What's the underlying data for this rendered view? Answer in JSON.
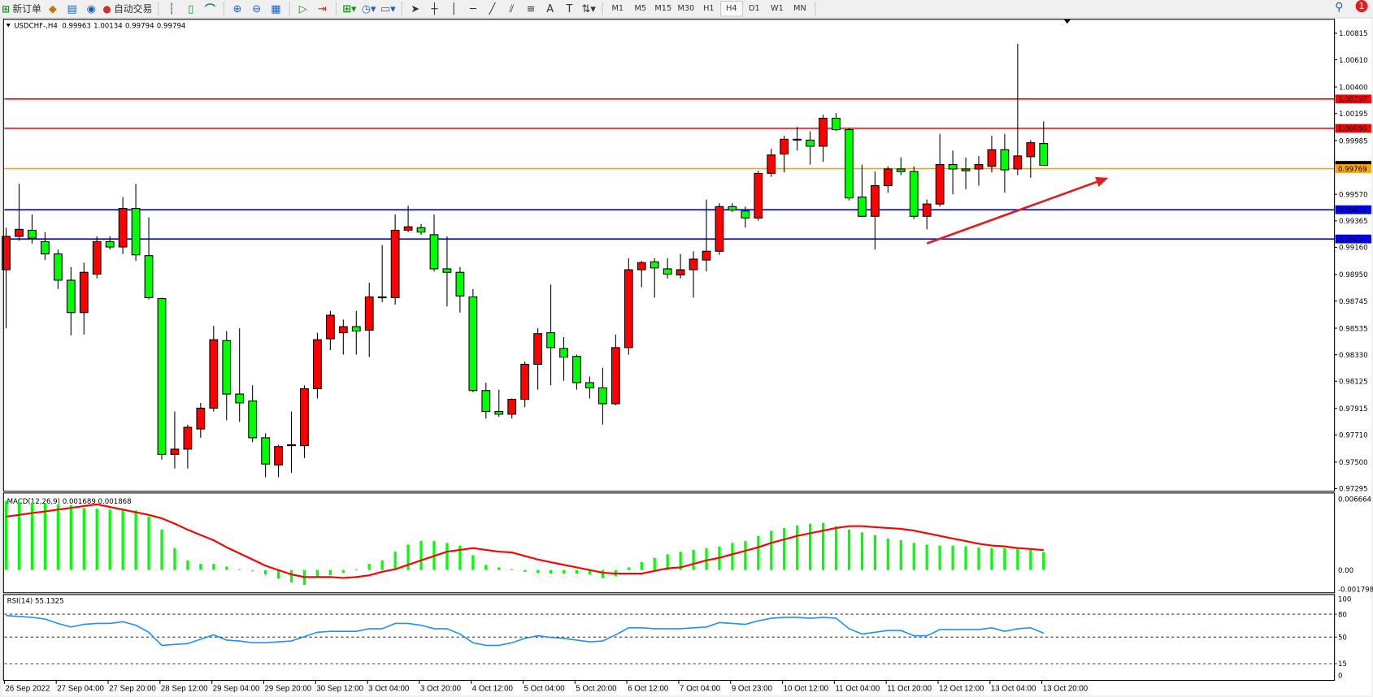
{
  "toolbar": {
    "new_order_label": "新订单",
    "auto_trading_label": "自动交易",
    "timeframes": [
      "M1",
      "M5",
      "M15",
      "M30",
      "H1",
      "H4",
      "D1",
      "W1",
      "MN"
    ],
    "active_timeframe": "H4",
    "notification_count": "1"
  },
  "chart": {
    "symbol": "USDCHF-,H4",
    "open": "0.99963",
    "high": "1.00134",
    "low": "0.99794",
    "close": "0.99794"
  },
  "colors": {
    "bull": "#ff0000",
    "bear": "#00ff00",
    "resistance": "#ff0000",
    "pivot": "#ffa500",
    "support": "#0000ff",
    "macd_hist": "#00ff00",
    "macd_signal": "#ff0000",
    "rsi": "#1e90ff",
    "arrow": "#e02020"
  },
  "chart_data": [
    {
      "type": "candlestick",
      "ylim": [
        0.97295,
        1.00815
      ],
      "price_ticks": [
        "1.00815",
        "1.00610",
        "1.00400",
        "1.00195",
        "0.99985",
        "0.99570",
        "0.99365",
        "0.99160",
        "0.98950",
        "0.98745",
        "0.98535",
        "0.98330",
        "0.98125",
        "0.97915",
        "0.97710",
        "0.97500",
        "0.97295"
      ],
      "x_labels": [
        "26 Sep 2022",
        "27 Sep 04:00",
        "27 Sep 20:00",
        "28 Sep 12:00",
        "29 Sep 04:00",
        "29 Sep 20:00",
        "30 Sep 12:00",
        "3 Oct 04:00",
        "3 Oct 20:00",
        "4 Oct 12:00",
        "5 Oct 04:00",
        "5 Oct 20:00",
        "6 Oct 12:00",
        "7 Oct 04:00",
        "9 Oct 23:00",
        "10 Oct 12:00",
        "11 Oct 04:00",
        "11 Oct 20:00",
        "12 Oct 12:00",
        "13 Oct 04:00",
        "13 Oct 20:00"
      ],
      "x_label_every": 4,
      "ohlc": [
        [
          0.98987,
          0.99312,
          0.98534,
          0.99245
        ],
        [
          0.99245,
          0.99651,
          0.99211,
          0.99299
        ],
        [
          0.99292,
          0.99414,
          0.9919,
          0.99231
        ],
        [
          0.99204,
          0.99278,
          0.99062,
          0.99109
        ],
        [
          0.99109,
          0.99143,
          0.98838,
          0.98906
        ],
        [
          0.98906,
          0.99008,
          0.9848,
          0.98656
        ],
        [
          0.98656,
          0.99042,
          0.98486,
          0.98967
        ],
        [
          0.98953,
          0.99245,
          0.9892,
          0.99204
        ],
        [
          0.99204,
          0.99245,
          0.99143,
          0.99163
        ],
        [
          0.99163,
          0.99549,
          0.99109,
          0.99461
        ],
        [
          0.99461,
          0.99651,
          0.99055,
          0.99102
        ],
        [
          0.99096,
          0.99393,
          0.98757,
          0.98771
        ],
        [
          0.98764,
          0.98771,
          0.97519,
          0.97559
        ],
        [
          0.97559,
          0.97891,
          0.97451,
          0.976
        ],
        [
          0.976,
          0.97789,
          0.97451,
          0.97769
        ],
        [
          0.97756,
          0.97958,
          0.97688,
          0.97917
        ],
        [
          0.97917,
          0.98554,
          0.97891,
          0.98446
        ],
        [
          0.98439,
          0.98513,
          0.97823,
          0.98026
        ],
        [
          0.98026,
          0.98534,
          0.9781,
          0.97958
        ],
        [
          0.97972,
          0.98094,
          0.97654,
          0.97688
        ],
        [
          0.97688,
          0.97722,
          0.97383,
          0.97485
        ],
        [
          0.97478,
          0.97634,
          0.97383,
          0.9762
        ],
        [
          0.97634,
          0.97891,
          0.97417,
          0.97627
        ],
        [
          0.97627,
          0.98094,
          0.97532,
          0.98067
        ],
        [
          0.98067,
          0.985,
          0.97992,
          0.98446
        ],
        [
          0.98453,
          0.98669,
          0.98365,
          0.98635
        ],
        [
          0.985,
          0.98602,
          0.98331,
          0.98547
        ],
        [
          0.98547,
          0.98669,
          0.98331,
          0.98513
        ],
        [
          0.9852,
          0.98886,
          0.98311,
          0.98777
        ],
        [
          0.98777,
          0.99177,
          0.98737,
          0.98771
        ],
        [
          0.98771,
          0.99414,
          0.98717,
          0.99292
        ],
        [
          0.99292,
          0.99482,
          0.99278,
          0.99319
        ],
        [
          0.99312,
          0.99339,
          0.99258,
          0.99278
        ],
        [
          0.99258,
          0.99414,
          0.98974,
          0.98994
        ],
        [
          0.98994,
          0.99245,
          0.98703,
          0.98967
        ],
        [
          0.98967,
          0.99008,
          0.98656,
          0.98784
        ],
        [
          0.98777,
          0.98838,
          0.9804,
          0.98053
        ],
        [
          0.98053,
          0.98114,
          0.97837,
          0.97891
        ],
        [
          0.97891,
          0.9806,
          0.9785,
          0.9787
        ],
        [
          0.9787,
          0.97992,
          0.97837,
          0.97985
        ],
        [
          0.97985,
          0.98277,
          0.97924,
          0.98256
        ],
        [
          0.98256,
          0.98534,
          0.9806,
          0.98493
        ],
        [
          0.985,
          0.98872,
          0.98094,
          0.98385
        ],
        [
          0.98378,
          0.98466,
          0.98128,
          0.98311
        ],
        [
          0.98317,
          0.98331,
          0.9806,
          0.98114
        ],
        [
          0.98114,
          0.98162,
          0.97992,
          0.98074
        ],
        [
          0.98074,
          0.98229,
          0.97789,
          0.97951
        ],
        [
          0.97951,
          0.98486,
          0.97938,
          0.98385
        ],
        [
          0.98385,
          0.99075,
          0.98331,
          0.98987
        ],
        [
          0.98987,
          0.99055,
          0.98852,
          0.99042
        ],
        [
          0.99048,
          0.99075,
          0.98771,
          0.99001
        ],
        [
          0.98994,
          0.99075,
          0.9892,
          0.98953
        ],
        [
          0.98947,
          0.99109,
          0.9892,
          0.98987
        ],
        [
          0.98987,
          0.9913,
          0.98771,
          0.99069
        ],
        [
          0.99062,
          0.99529,
          0.98974,
          0.9913
        ],
        [
          0.9913,
          0.99502,
          0.99102,
          0.99475
        ],
        [
          0.99475,
          0.99502,
          0.99434,
          0.99448
        ],
        [
          0.99441,
          0.99475,
          0.99312,
          0.99387
        ],
        [
          0.99387,
          0.99752,
          0.99366,
          0.99732
        ],
        [
          0.99732,
          0.99921,
          0.99705,
          0.99874
        ],
        [
          0.99881,
          1.00023,
          0.99739,
          0.99996
        ],
        [
          0.99996,
          1.00091,
          0.99908,
          0.99989
        ],
        [
          0.99989,
          1.00057,
          0.998,
          0.99942
        ],
        [
          0.99942,
          1.00185,
          0.9982,
          1.00158
        ],
        [
          1.00158,
          1.00199,
          1.00057,
          1.0007
        ],
        [
          1.0007,
          1.00084,
          0.99522,
          0.99542
        ],
        [
          0.99549,
          0.998,
          0.99393,
          0.994
        ],
        [
          0.994,
          0.99746,
          0.99143,
          0.99637
        ],
        [
          0.99637,
          0.99786,
          0.99583,
          0.99766
        ],
        [
          0.99766,
          0.99854,
          0.99718,
          0.99746
        ],
        [
          0.99746,
          0.99786,
          0.9938,
          0.994
        ],
        [
          0.994,
          0.99529,
          0.99299,
          0.99495
        ],
        [
          0.99495,
          1.00037,
          0.99475,
          0.998
        ],
        [
          0.998,
          0.99908,
          0.9957,
          0.99766
        ],
        [
          0.99766,
          0.99854,
          0.9961,
          0.99752
        ],
        [
          0.99766,
          0.99867,
          0.99637,
          0.998
        ],
        [
          0.99786,
          1.00023,
          0.99739,
          0.99915
        ],
        [
          0.99915,
          1.00037,
          0.99583,
          0.99759
        ],
        [
          0.99766,
          1.00734,
          0.99718,
          0.99867
        ],
        [
          0.99861,
          0.99989,
          0.99698,
          0.99969
        ],
        [
          0.99963,
          1.00134,
          0.99794,
          0.99794
        ]
      ],
      "hlines": [
        {
          "price": 1.00307,
          "label": "1.00307",
          "kind": "resistance"
        },
        {
          "price": 1.0008,
          "label": "1.00080",
          "kind": "resistance"
        },
        {
          "price": 0.99769,
          "label": "0.99769",
          "kind": "pivot"
        },
        {
          "price": 0.99451,
          "label": "0.99451",
          "kind": "support"
        },
        {
          "price": 0.99225,
          "label": "0.99225",
          "kind": "support"
        }
      ],
      "bid_price": 0.99794,
      "arrow": {
        "from": {
          "candle": 71,
          "price": 0.9919
        },
        "to": {
          "candle": 85,
          "price": 0.99698
        }
      }
    },
    {
      "type": "bar+line",
      "label": "MACD(12,26,9) 0.001689 0.001868",
      "ylim": [
        -0.001798,
        0.006664
      ],
      "ticks": [
        "0.006664",
        "0.00",
        "-0.001798"
      ],
      "histogram": [
        0.0065,
        0.00642,
        0.00634,
        0.00625,
        0.00617,
        0.00609,
        0.00584,
        0.00576,
        0.00568,
        0.0056,
        0.0056,
        0.00502,
        0.00379,
        0.00206,
        0.00091,
        0.00058,
        0.00058,
        0.00033,
        8e-05,
        -8e-05,
        -0.00041,
        -0.00082,
        -0.00115,
        -0.0014,
        -0.00074,
        -0.00049,
        -0.00025,
        8e-05,
        0.00058,
        0.00091,
        0.00173,
        0.00239,
        0.00272,
        0.00272,
        0.00255,
        0.0023,
        0.0014,
        0.00049,
        0.00025,
        8e-05,
        -0.00016,
        -0.00025,
        -0.00033,
        -0.00033,
        -0.00033,
        -0.00041,
        -0.00074,
        -0.00058,
        0.00025,
        0.00074,
        0.00115,
        0.00148,
        0.00173,
        0.00189,
        0.00206,
        0.00222,
        0.00255,
        0.00272,
        0.00321,
        0.0037,
        0.00395,
        0.0042,
        0.00436,
        0.00444,
        0.00412,
        0.00379,
        0.00354,
        0.00329,
        0.00296,
        0.0028,
        0.00255,
        0.00239,
        0.0023,
        0.0023,
        0.00222,
        0.00214,
        0.00206,
        0.00206,
        0.00206,
        0.00198,
        0.001689
      ],
      "signal": [
        0.00502,
        0.00518,
        0.00535,
        0.00551,
        0.00568,
        0.00584,
        0.00601,
        0.00617,
        0.00593,
        0.00568,
        0.00543,
        0.00518,
        0.00486,
        0.00436,
        0.00379,
        0.00329,
        0.0028,
        0.00214,
        0.00156,
        0.00099,
        0.00041,
        0.0,
        -0.00041,
        -0.00066,
        -0.00066,
        -0.00066,
        -0.00074,
        -0.00066,
        -0.00049,
        -0.00016,
        8e-05,
        0.00049,
        0.00091,
        0.00132,
        0.00173,
        0.00189,
        0.00206,
        0.00189,
        0.00173,
        0.00165,
        0.00132,
        0.00099,
        0.00074,
        0.00049,
        0.00025,
        0.0,
        -0.00025,
        -0.00033,
        -0.00033,
        -0.00033,
        -8e-05,
        0.00016,
        0.00025,
        0.00058,
        0.00091,
        0.00115,
        0.00148,
        0.00181,
        0.00214,
        0.00255,
        0.00288,
        0.00321,
        0.00346,
        0.0037,
        0.00395,
        0.00412,
        0.00412,
        0.00403,
        0.00395,
        0.00387,
        0.0037,
        0.00346,
        0.00321,
        0.00296,
        0.00272,
        0.00247,
        0.0023,
        0.00222,
        0.00206,
        0.00198,
        0.001868
      ]
    },
    {
      "type": "line",
      "label": "RSI(14) 55.1325",
      "ylim": [
        0,
        100
      ],
      "ticks": [
        "100",
        "80",
        "50",
        "15",
        "0"
      ],
      "levels": [
        80,
        50,
        15
      ],
      "values": [
        78.2,
        77.0,
        75.9,
        73.6,
        67.8,
        63.2,
        66.7,
        67.8,
        67.8,
        70.1,
        65.5,
        56.3,
        39.1,
        40.2,
        41.4,
        47.1,
        52.9,
        46.0,
        44.8,
        42.5,
        42.5,
        43.7,
        44.8,
        50.6,
        56.3,
        57.5,
        57.5,
        57.5,
        60.9,
        60.9,
        67.8,
        67.8,
        65.5,
        60.9,
        60.9,
        54.0,
        42.5,
        39.1,
        39.1,
        42.5,
        48.3,
        51.7,
        49.4,
        48.3,
        46.0,
        43.7,
        44.8,
        52.9,
        62.1,
        62.1,
        60.9,
        60.9,
        60.9,
        62.1,
        63.2,
        69.0,
        67.8,
        66.7,
        71.3,
        74.7,
        75.9,
        75.9,
        74.7,
        75.9,
        74.7,
        60.9,
        54.0,
        56.3,
        58.6,
        58.6,
        51.7,
        51.7,
        59.8,
        59.8,
        59.8,
        59.8,
        62.1,
        57.5,
        60.9,
        62.1,
        55.1325
      ]
    }
  ]
}
